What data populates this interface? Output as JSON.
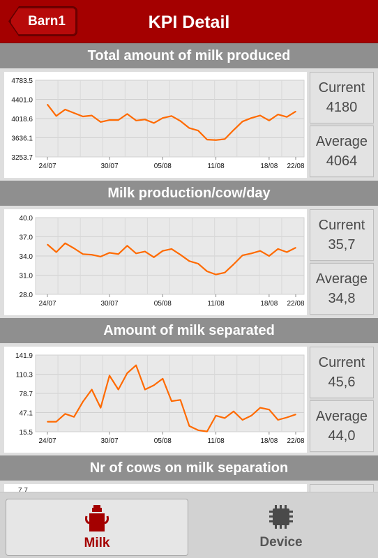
{
  "header": {
    "back_label": "Barn1",
    "title": "KPI Detail"
  },
  "sections": [
    {
      "title": "Total amount of milk produced",
      "current_label": "Current",
      "current_value": "4180",
      "average_label": "Average",
      "average_value": "4064"
    },
    {
      "title": "Milk production/cow/day",
      "current_label": "Current",
      "current_value": "35,7",
      "average_label": "Average",
      "average_value": "34,8"
    },
    {
      "title": "Amount of milk separated",
      "current_label": "Current",
      "current_value": "45,6",
      "average_label": "Average",
      "average_value": "44,0"
    },
    {
      "title": "Nr of cows on milk separation"
    }
  ],
  "chart_data": [
    {
      "type": "line",
      "title": "Total amount of milk produced",
      "x_tick_labels": [
        "24/07",
        "30/07",
        "05/08",
        "11/08",
        "18/08",
        "22/08"
      ],
      "y_tick_labels": [
        "4783.5",
        "4401.0",
        "4018.6",
        "3636.1",
        "3253.7"
      ],
      "ylim": [
        3253.7,
        4783.5
      ],
      "grid": true,
      "series_color": "#ff6a00",
      "values": [
        4300,
        4070,
        4200,
        4130,
        4060,
        4080,
        3950,
        3990,
        3990,
        4110,
        3980,
        4000,
        3930,
        4030,
        4070,
        3970,
        3830,
        3780,
        3600,
        3590,
        3610,
        3790,
        3960,
        4030,
        4080,
        3980,
        4100,
        4050,
        4160
      ]
    },
    {
      "type": "line",
      "title": "Milk production/cow/day",
      "x_tick_labels": [
        "24/07",
        "30/07",
        "05/08",
        "11/08",
        "18/08",
        "22/08"
      ],
      "y_tick_labels": [
        "40.0",
        "37.0",
        "34.0",
        "31.0",
        "28.0"
      ],
      "ylim": [
        28.0,
        40.0
      ],
      "grid": true,
      "series_color": "#ff6a00",
      "values": [
        35.8,
        34.6,
        36.0,
        35.2,
        34.3,
        34.2,
        33.9,
        34.5,
        34.3,
        35.6,
        34.4,
        34.7,
        33.8,
        34.8,
        35.1,
        34.2,
        33.2,
        32.8,
        31.6,
        31.1,
        31.4,
        32.7,
        34.1,
        34.4,
        34.8,
        34.0,
        35.1,
        34.6,
        35.3
      ]
    },
    {
      "type": "line",
      "title": "Amount of milk separated",
      "x_tick_labels": [
        "24/07",
        "30/07",
        "05/08",
        "11/08",
        "18/08",
        "22/08"
      ],
      "y_tick_labels": [
        "141.9",
        "110.3",
        "78.7",
        "47.1",
        "15.5"
      ],
      "ylim": [
        15.5,
        141.9
      ],
      "grid": true,
      "series_color": "#ff6a00",
      "values": [
        32,
        32,
        45,
        40,
        65,
        85,
        55,
        108,
        85,
        112,
        125,
        85,
        92,
        103,
        66,
        68,
        25,
        18,
        16,
        42,
        38,
        49,
        35,
        42,
        55,
        52,
        35,
        39,
        44
      ]
    },
    {
      "type": "line",
      "title": "Nr of cows on milk separation",
      "y_tick_labels": [
        "7.7"
      ]
    }
  ],
  "tabs": [
    {
      "label": "Milk",
      "icon": "milk-can-icon",
      "active": true
    },
    {
      "label": "Device",
      "icon": "chip-icon",
      "active": false
    }
  ]
}
